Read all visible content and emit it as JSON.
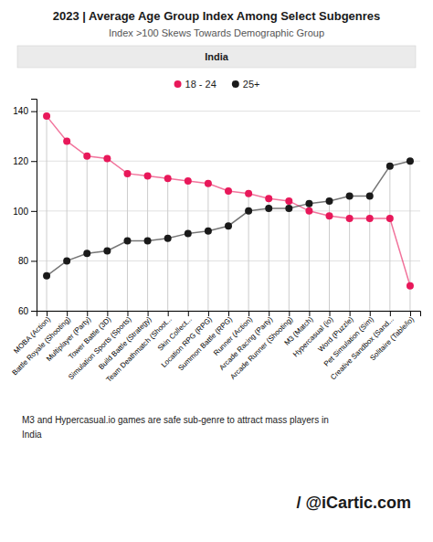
{
  "chart_data": {
    "type": "line",
    "title": "2023 | Average Age Group Index Among Select Subgenres",
    "subtitle": "Index  >100 Skews Towards Demographic Group",
    "annotations": [
      "India",
      "M3 and Hypercasual.io games are safe sub-genre to attract mass players in\nIndia",
      "/ @iCartic.com"
    ],
    "categories": [
      "MOBA (Action)",
      "Battle Royale (Shooting)",
      "Multiplayer (Party)",
      "Tower Battle (3D)",
      "Simulation Sports (Sports)",
      "Build Battle (Strategy)",
      "Team Deathmatch (Shoot...",
      "Skin Collect...",
      "Location RPG (RPG)",
      "Summon Battle (RPG)",
      "Runner (Action)",
      "Arcade Racing (Party)",
      "Arcade Runner (Shooting)",
      "M3 (Match)",
      "Hypercasual (io)",
      "Word (Puzzle)",
      "Pet Simulation (Sim)",
      "Creative Sandbox (Sand...",
      "Solitaire (Table/io)"
    ],
    "series": [
      {
        "name": "18 - 24",
        "color": "#E8185A",
        "marker": "circle",
        "line_style": "solid",
        "values": [
          138,
          128,
          122,
          121,
          115,
          114,
          113,
          112,
          111,
          108,
          107,
          105,
          104,
          100,
          98,
          97,
          97,
          97,
          70
        ]
      },
      {
        "name": "25+",
        "color": "#1a1a1a",
        "marker": "circle",
        "line_style": "solid",
        "values": [
          74,
          80,
          83,
          84,
          88,
          88,
          89,
          91,
          92,
          94,
          100,
          101,
          101,
          103,
          104,
          106,
          106,
          118,
          120
        ]
      }
    ],
    "ylim": [
      60,
      145
    ],
    "yticks": [
      60,
      80,
      100,
      120,
      140
    ],
    "grid": true,
    "legend": "top"
  }
}
